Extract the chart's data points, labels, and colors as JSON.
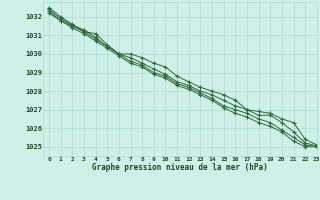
{
  "title": "Graphe pression niveau de la mer (hPa)",
  "background_color": "#cff0e8",
  "plot_bg_color": "#cff0e8",
  "grid_color": "#a8ddd4",
  "line_color": "#2d6b35",
  "xlim": [
    -0.5,
    23
  ],
  "ylim": [
    1024.5,
    1032.8
  ],
  "yticks": [
    1025,
    1026,
    1027,
    1028,
    1029,
    1030,
    1031,
    1032
  ],
  "xticks": [
    0,
    1,
    2,
    3,
    4,
    5,
    6,
    7,
    8,
    9,
    10,
    11,
    12,
    13,
    14,
    15,
    16,
    17,
    18,
    19,
    20,
    21,
    22,
    23
  ],
  "series": [
    [
      1032.5,
      1032.0,
      1031.6,
      1031.2,
      1031.1,
      1030.5,
      1030.0,
      1030.0,
      1029.8,
      1029.5,
      1029.3,
      1028.8,
      1028.5,
      1028.2,
      1028.0,
      1027.8,
      1027.5,
      1027.0,
      1026.9,
      1026.8,
      1026.5,
      1026.3,
      1025.4,
      1025.1
    ],
    [
      1032.4,
      1031.9,
      1031.55,
      1031.3,
      1030.9,
      1030.4,
      1030.0,
      1029.8,
      1029.5,
      1029.2,
      1028.9,
      1028.5,
      1028.3,
      1028.0,
      1027.8,
      1027.5,
      1027.2,
      1027.0,
      1026.7,
      1026.7,
      1026.3,
      1025.8,
      1025.2,
      1025.05
    ],
    [
      1032.3,
      1031.8,
      1031.5,
      1031.2,
      1030.8,
      1030.4,
      1030.0,
      1029.6,
      1029.4,
      1029.0,
      1028.8,
      1028.4,
      1028.2,
      1027.9,
      1027.6,
      1027.2,
      1027.0,
      1026.8,
      1026.5,
      1026.3,
      1025.9,
      1025.5,
      1025.1,
      1025.0
    ],
    [
      1032.2,
      1031.8,
      1031.4,
      1031.1,
      1030.7,
      1030.3,
      1029.9,
      1029.5,
      1029.3,
      1028.9,
      1028.7,
      1028.3,
      1028.1,
      1027.8,
      1027.5,
      1027.1,
      1026.8,
      1026.6,
      1026.3,
      1026.1,
      1025.8,
      1025.3,
      1025.0,
      1025.0
    ]
  ]
}
